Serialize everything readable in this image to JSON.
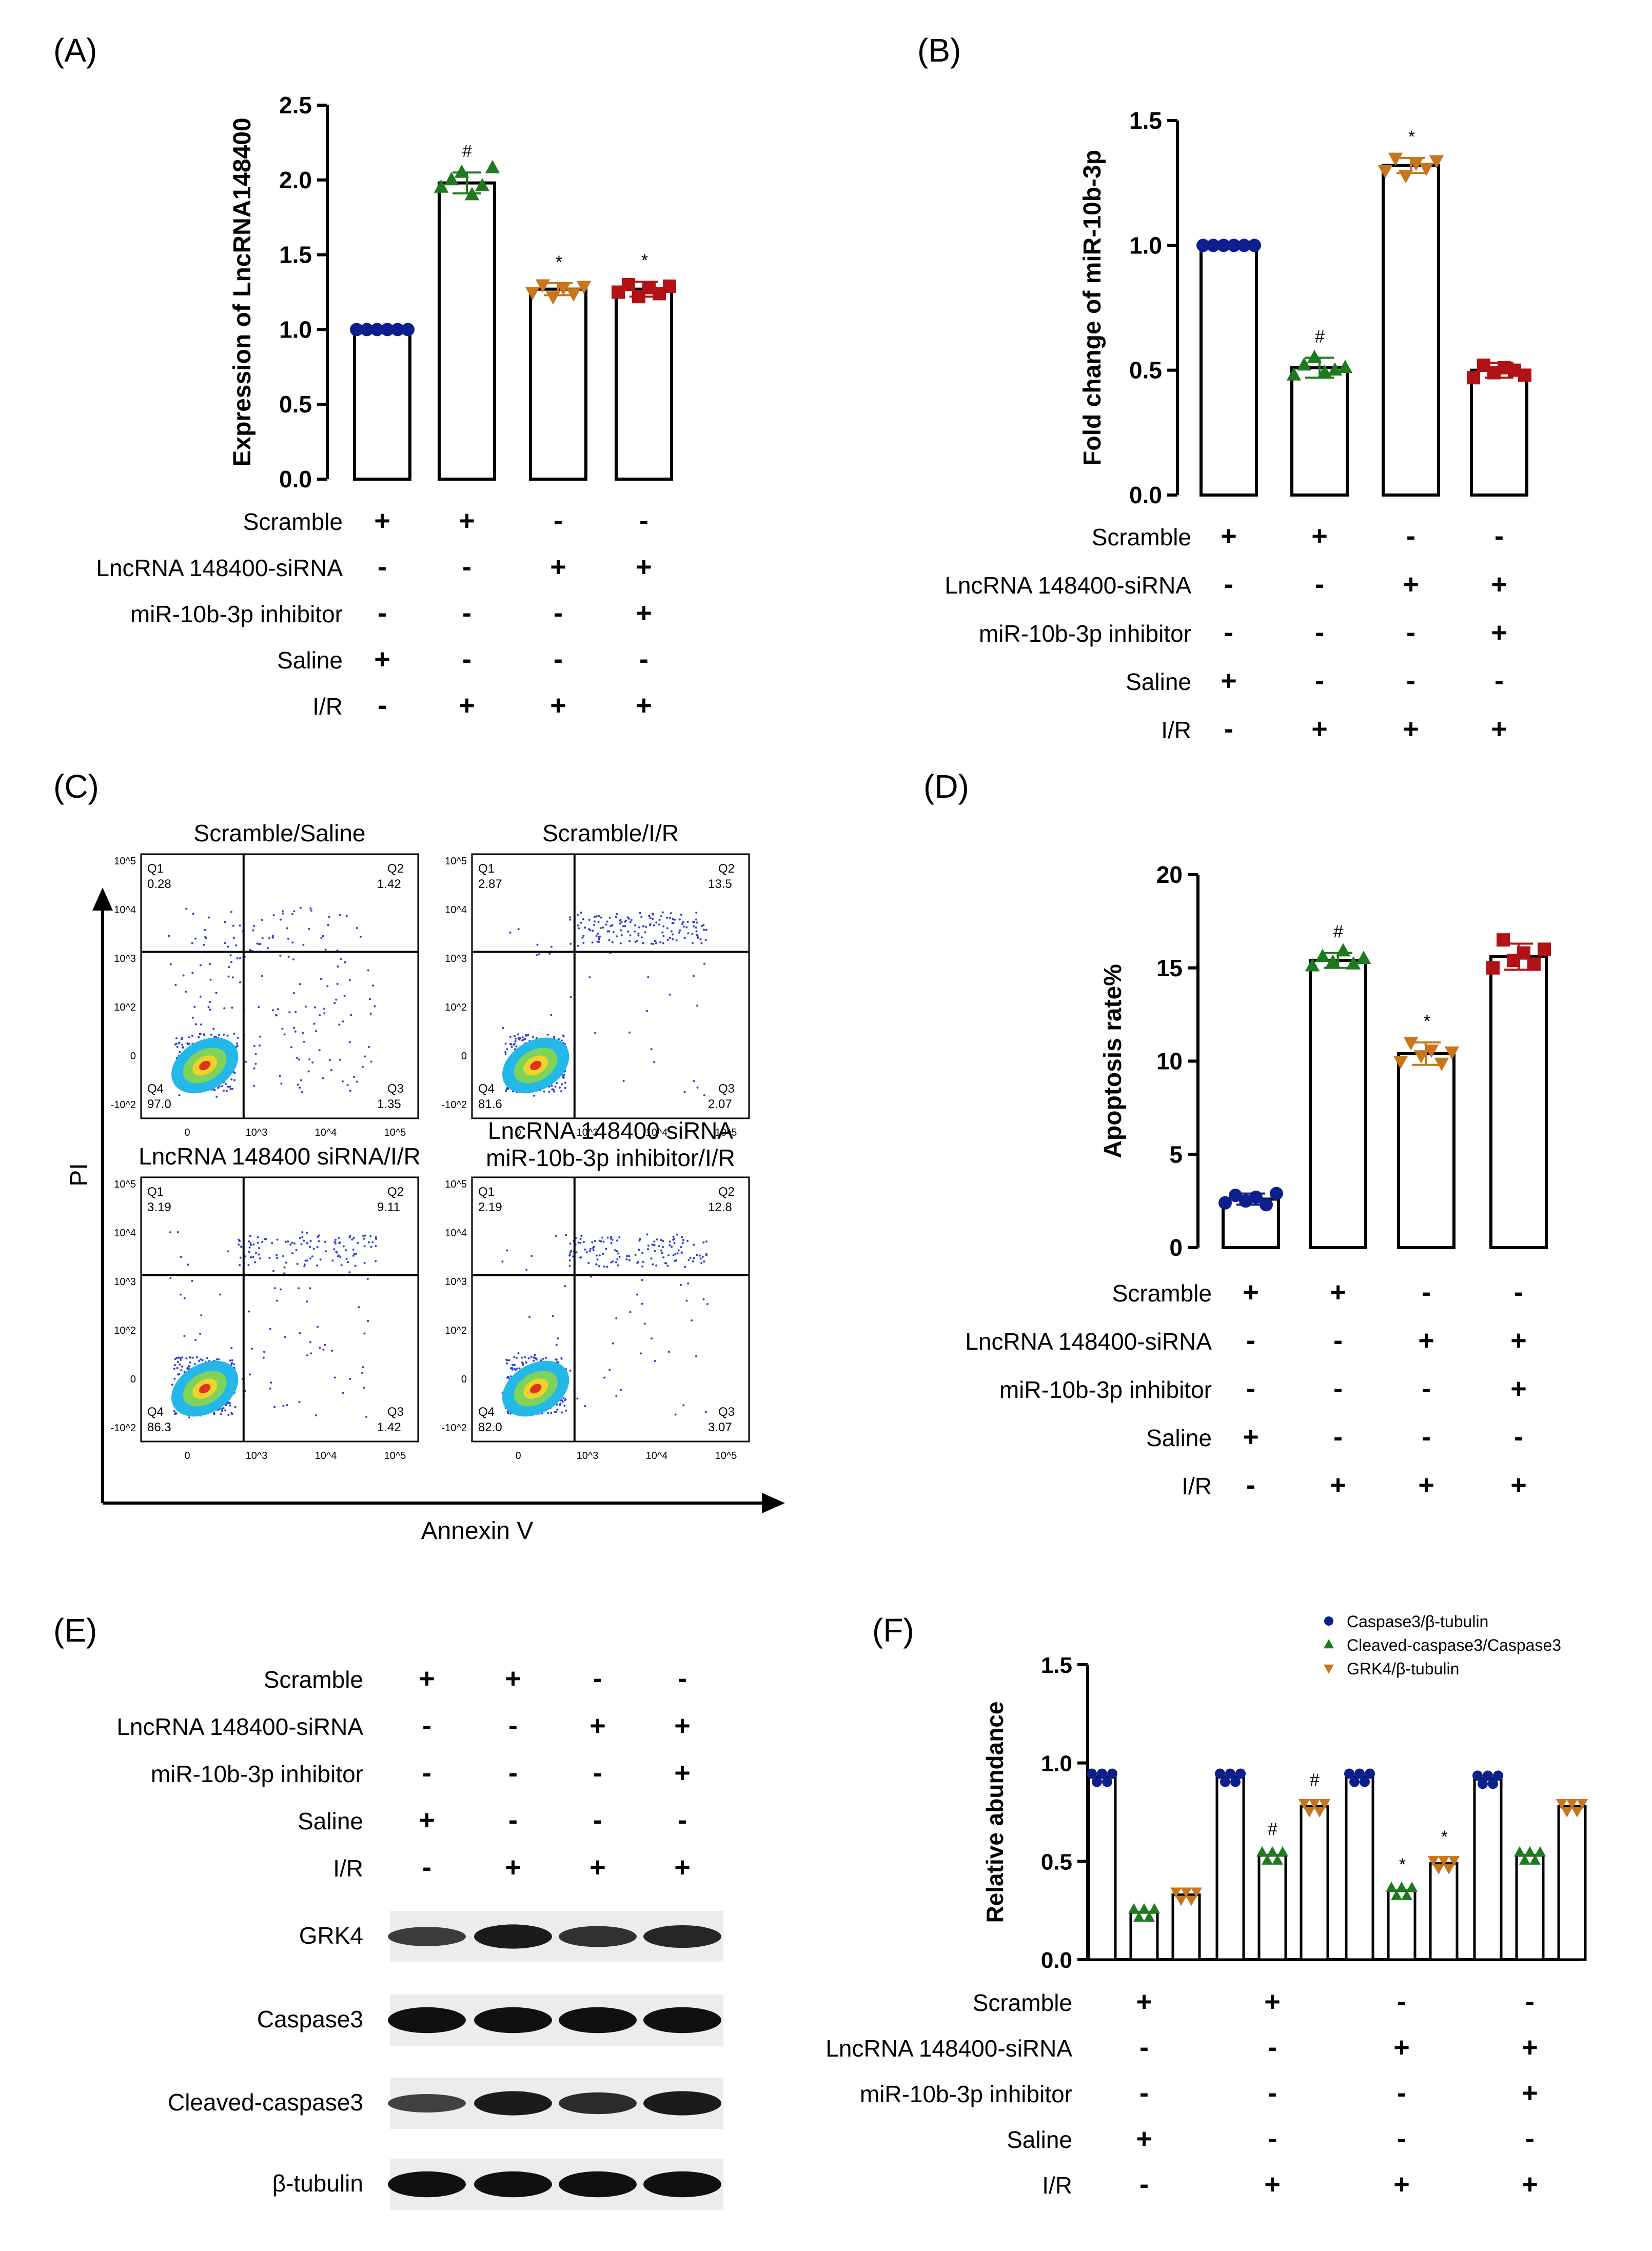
{
  "panel_labels": {
    "A": "(A)",
    "B": "(B)",
    "C": "(C)",
    "D": "(D)",
    "E": "(E)",
    "F": "(F)"
  },
  "conditions": {
    "rows": [
      "Scramble",
      "LncRNA 148400-siRNA",
      "miR-10b-3p inhibitor",
      "Saline",
      "I/R"
    ],
    "signs": [
      [
        "+",
        "+",
        "-",
        "-"
      ],
      [
        "-",
        "-",
        "+",
        "+"
      ],
      [
        "-",
        "-",
        "-",
        "+"
      ],
      [
        "+",
        "-",
        "-",
        "-"
      ],
      [
        "-",
        "+",
        "+",
        "+"
      ]
    ]
  },
  "groups": [
    "Scramble/Saline",
    "Scramble/I/R",
    "LncRNA 148400-siRNA/I/R",
    "LncRNA 148400-siRNA + miR-10b-3p inhibitor/I/R"
  ],
  "colors": {
    "saline": "#0d1f8c",
    "ir": "#1f7a1f",
    "sirna": "#c8761c",
    "inhibitor": "#b01216"
  },
  "flow": {
    "plots": [
      {
        "title": "Scramble/Saline",
        "q1": "0.28",
        "q2": "1.42",
        "q3": "1.35",
        "q4": "97.0"
      },
      {
        "title": "Scramble/I/R",
        "q1": "2.87",
        "q2": "13.5",
        "q3": "2.07",
        "q4": "81.6"
      },
      {
        "title": "LncRNA 148400 siRNA/I/R",
        "q1": "3.19",
        "q2": "9.11",
        "q3": "1.42",
        "q4": "86.3"
      },
      {
        "title": "LncRNA 148400 siRNA",
        "title2": "miR-10b-3p inhibitor/I/R",
        "q1": "2.19",
        "q2": "12.8",
        "q3": "3.07",
        "q4": "82.0"
      }
    ],
    "quadrants": [
      "Q1",
      "Q2",
      "Q3",
      "Q4"
    ],
    "ylabel": "PI",
    "xlabel": "Annexin V",
    "yticks": [
      "10^5",
      "10^4",
      "10^3",
      "10^2",
      "0",
      "-10^2"
    ],
    "xticks": [
      "0",
      "10^3",
      "10^4",
      "10^5"
    ]
  },
  "western": {
    "bands": [
      "GRK4",
      "Caspase3",
      "Cleaved-caspase3",
      "β-tubulin"
    ],
    "intensity": [
      [
        0.55,
        0.85,
        0.65,
        0.75
      ],
      [
        0.95,
        0.95,
        0.95,
        0.95
      ],
      [
        0.5,
        0.85,
        0.7,
        0.85
      ],
      [
        0.95,
        0.95,
        0.95,
        0.95
      ]
    ]
  },
  "chart_data": [
    {
      "panel": "A",
      "type": "bar",
      "ylabel": "Expression of LncRNA148400",
      "ylim": [
        0,
        2.5
      ],
      "yticks": [
        "0.0",
        "0.5",
        "1.0",
        "1.5",
        "2.0",
        "2.5"
      ],
      "values": [
        1.0,
        1.98,
        1.27,
        1.27
      ],
      "errors": [
        0.0,
        0.07,
        0.04,
        0.05
      ],
      "annotations": [
        "",
        "#",
        "*",
        "*"
      ],
      "points": [
        [
          1.0,
          1.0,
          1.0,
          1.0,
          1.0,
          1.0
        ],
        [
          1.95,
          2.0,
          2.05,
          1.9,
          1.96,
          2.08
        ],
        [
          1.25,
          1.3,
          1.22,
          1.28,
          1.24,
          1.29
        ],
        [
          1.25,
          1.3,
          1.22,
          1.28,
          1.24,
          1.29
        ]
      ]
    },
    {
      "panel": "B",
      "type": "bar",
      "ylabel": "Fold change of miR-10b-3p",
      "ylim": [
        0,
        1.5
      ],
      "yticks": [
        "0.0",
        "0.5",
        "1.0",
        "1.5"
      ],
      "values": [
        1.0,
        0.51,
        1.32,
        0.5
      ],
      "errors": [
        0.0,
        0.04,
        0.03,
        0.03
      ],
      "annotations": [
        "",
        "#",
        "*",
        ""
      ],
      "points": [
        [
          1.0,
          1.0,
          1.0,
          1.0,
          1.0,
          1.0
        ],
        [
          0.48,
          0.52,
          0.55,
          0.49,
          0.5,
          0.51
        ],
        [
          1.3,
          1.35,
          1.28,
          1.33,
          1.31,
          1.34
        ],
        [
          0.47,
          0.52,
          0.49,
          0.51,
          0.5,
          0.48
        ]
      ]
    },
    {
      "panel": "D",
      "type": "bar",
      "ylabel": "Apoptosis rate%",
      "ylim": [
        0,
        20
      ],
      "yticks": [
        "0",
        "5",
        "10",
        "15",
        "20"
      ],
      "values": [
        2.6,
        15.4,
        10.4,
        15.6
      ],
      "errors": [
        0.3,
        0.4,
        0.6,
        0.7
      ],
      "annotations": [
        "",
        "#",
        "*",
        ""
      ],
      "points": [
        [
          2.4,
          2.8,
          2.5,
          2.7,
          2.3,
          2.9
        ],
        [
          15.1,
          15.6,
          15.3,
          15.9,
          15.2,
          15.5
        ],
        [
          10.0,
          11.0,
          10.3,
          10.6,
          9.9,
          10.5
        ],
        [
          15.0,
          16.5,
          15.4,
          15.8,
          15.2,
          16.0
        ]
      ]
    },
    {
      "panel": "F",
      "type": "bar",
      "ylabel": "Relative abundance",
      "ylim": [
        0,
        1.5
      ],
      "yticks": [
        "0.0",
        "0.5",
        "1.0",
        "1.5"
      ],
      "series": [
        {
          "name": "Caspase3/β-tubulin",
          "values": [
            0.93,
            0.93,
            0.93,
            0.92
          ],
          "annotations": [
            "",
            "",
            "",
            ""
          ]
        },
        {
          "name": "Cleaved-caspase3/Caspase3",
          "values": [
            0.24,
            0.53,
            0.35,
            0.53
          ],
          "annotations": [
            "",
            "#",
            "*",
            ""
          ]
        },
        {
          "name": "GRK4/β-tubulin",
          "values": [
            0.33,
            0.78,
            0.49,
            0.78
          ],
          "annotations": [
            "",
            "#",
            "*",
            ""
          ]
        }
      ]
    }
  ]
}
